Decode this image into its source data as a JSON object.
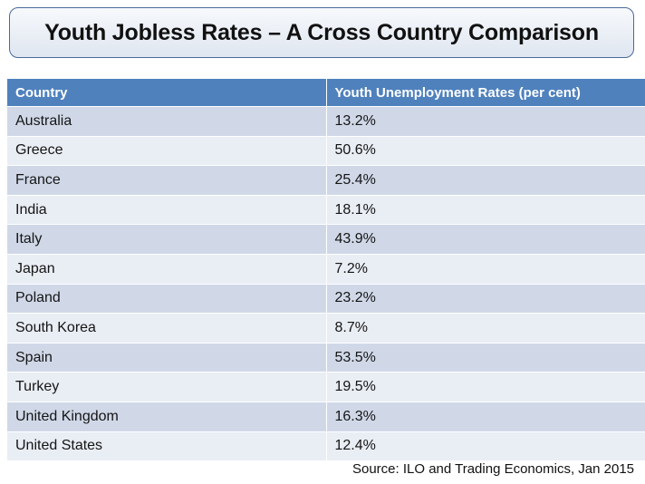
{
  "title": "Youth Jobless Rates – A Cross Country Comparison",
  "table": {
    "headers": [
      "Country",
      "Youth Unemployment Rates (per cent)"
    ],
    "rows": [
      [
        "Australia",
        "13.2%"
      ],
      [
        "Greece",
        "50.6%"
      ],
      [
        "France",
        "25.4%"
      ],
      [
        "India",
        "18.1%"
      ],
      [
        "Italy",
        "43.9%"
      ],
      [
        "Japan",
        "7.2%"
      ],
      [
        "Poland",
        "23.2%"
      ],
      [
        "South Korea",
        "8.7%"
      ],
      [
        "Spain",
        "53.5%"
      ],
      [
        "Turkey",
        "19.5%"
      ],
      [
        "United Kingdom",
        "16.3%"
      ],
      [
        "United States",
        "12.4%"
      ]
    ]
  },
  "source": "Source: ILO and Trading Economics, Jan 2015",
  "colors": {
    "header_bg": "#4f81bd",
    "row_odd": "#d0d8e8",
    "row_even": "#e9edf4",
    "title_border": "#4a6a9a"
  }
}
